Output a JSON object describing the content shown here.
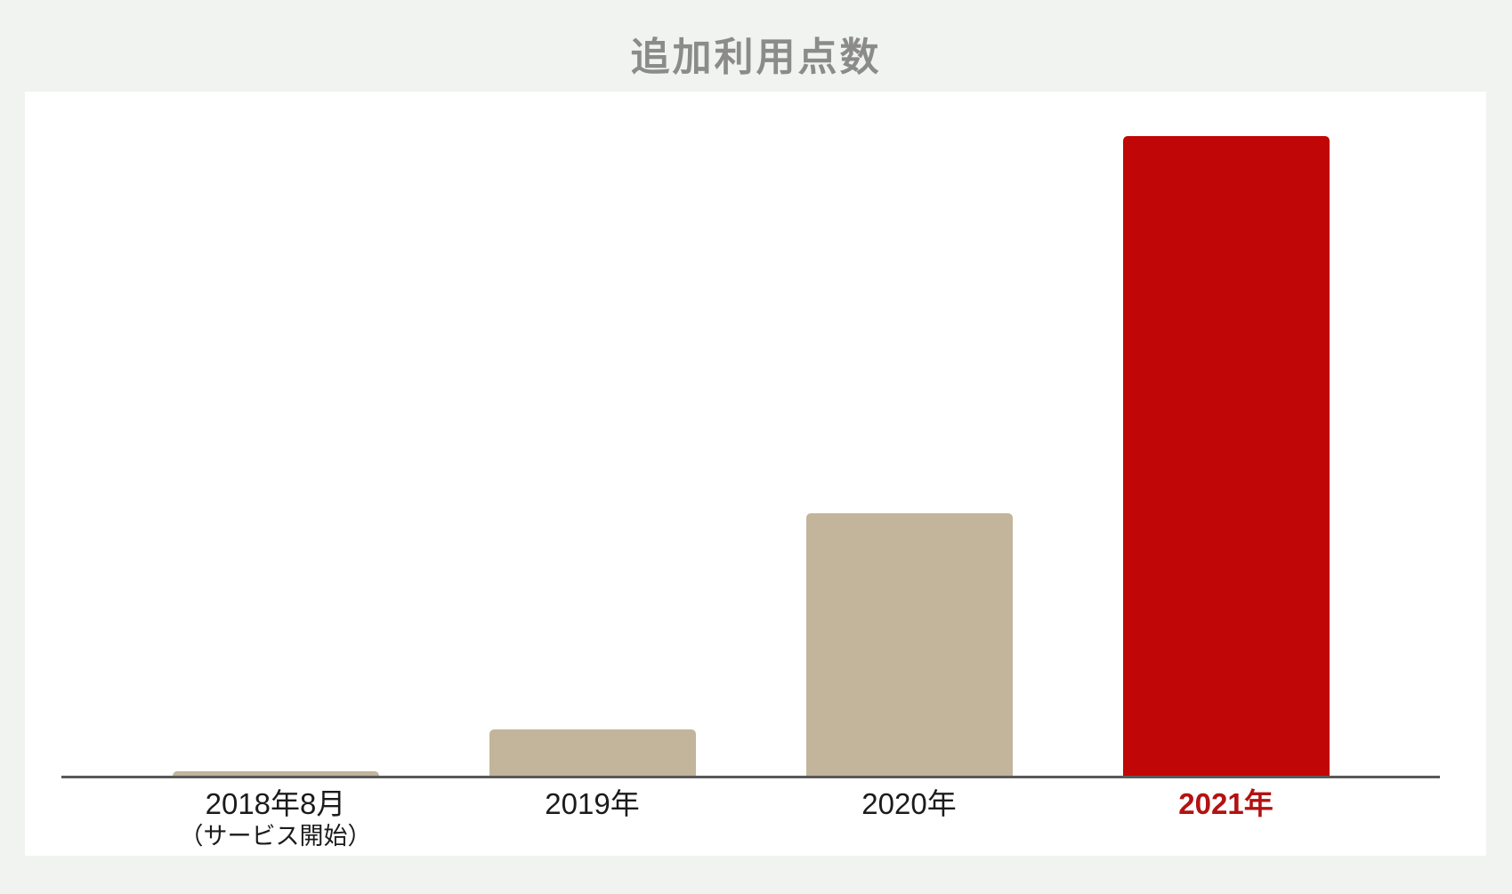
{
  "header": {
    "title": "追加利用点数"
  },
  "colors": {
    "page_background": "#f0f3ef",
    "panel_background": "#ffffff",
    "title_gray": "#8b8b88",
    "axis_gray": "#595959",
    "bar_beige": "#c2b59c",
    "bar_red": "#c00606",
    "label_black": "#1b1b1b",
    "label_red": "#b31212"
  },
  "chart_data": {
    "type": "bar",
    "title": "追加利用点数",
    "categories": [
      "2018年8月（サービス開始）",
      "2019年",
      "2020年",
      "2021年"
    ],
    "category_labels": [
      {
        "line1": "2018年8月",
        "line2": "（サービス開始）",
        "color": "#1b1b1b",
        "bold": false
      },
      {
        "line1": "2019年",
        "line2": "",
        "color": "#1b1b1b",
        "bold": false
      },
      {
        "line1": "2020年",
        "line2": "",
        "color": "#1b1b1b",
        "bold": false
      },
      {
        "line1": "2021年",
        "line2": "",
        "color": "#b31212",
        "bold": true
      }
    ],
    "values": [
      0.7,
      7.3,
      41,
      100
    ],
    "value_unit": "relative, 2021 bar = 100 (no numeric axis or data labels shown in chart)",
    "bar_colors": [
      "#c2b59c",
      "#c2b59c",
      "#c2b59c",
      "#c00606"
    ],
    "xlabel": "",
    "ylabel": "",
    "ylim": [
      0,
      100
    ],
    "grid": false,
    "legend": false,
    "y_axis_ticks_shown": false
  }
}
